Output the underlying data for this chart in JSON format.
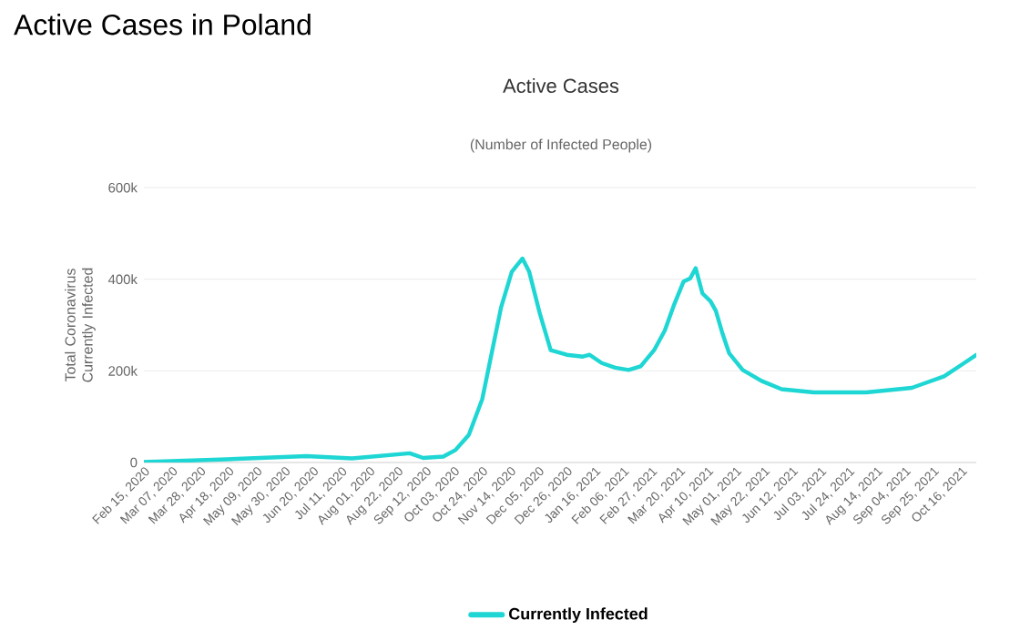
{
  "chart_data": {
    "type": "line",
    "title": "Active Cases",
    "subtitle": "(Number of Infected People)",
    "annotations": [
      "Active Cases in Poland"
    ],
    "ylabel": "Total Coronavirus Currently Infected",
    "x": [
      "2020-02-15",
      "2020-04-17",
      "2020-06-15",
      "2020-07-19",
      "2020-08-31",
      "2020-09-10",
      "2020-09-25",
      "2020-10-04",
      "2020-10-14",
      "2020-10-24",
      "2020-10-31",
      "2020-11-07",
      "2020-11-15",
      "2020-11-19",
      "2020-11-23",
      "2020-11-28",
      "2020-12-06",
      "2020-12-14",
      "2020-12-26",
      "2021-01-07",
      "2021-01-12",
      "2021-01-21",
      "2021-01-31",
      "2021-02-10",
      "2021-02-19",
      "2021-03-01",
      "2021-03-09",
      "2021-03-16",
      "2021-03-23",
      "2021-03-28",
      "2021-04-01",
      "2021-04-06",
      "2021-04-12",
      "2021-04-16",
      "2021-04-21",
      "2021-04-26",
      "2021-05-06",
      "2021-05-20",
      "2021-06-04",
      "2021-06-28",
      "2021-08-06",
      "2021-09-09",
      "2021-10-03",
      "2021-10-18",
      "2021-10-27"
    ],
    "series": [
      {
        "name": "Currently Infected",
        "color": "#1ed6d3",
        "values": [
          1000,
          7000,
          14000,
          9000,
          20000,
          10000,
          13000,
          27000,
          60000,
          138000,
          238000,
          338000,
          416000,
          431000,
          445000,
          416000,
          324000,
          245000,
          235000,
          231000,
          235000,
          217000,
          207000,
          202000,
          210000,
          245000,
          288000,
          345000,
          395000,
          402000,
          424000,
          369000,
          352000,
          331000,
          281000,
          238000,
          202000,
          178000,
          160000,
          153000,
          153000,
          163000,
          188000,
          217000,
          235000
        ]
      }
    ],
    "xlim": [
      "2020-02-15",
      "2021-10-27"
    ],
    "xticks": [
      {
        "value": "2020-02-15",
        "label": "Feb 15, 2020"
      },
      {
        "value": "2020-03-07",
        "label": "Mar 07, 2020"
      },
      {
        "value": "2020-03-28",
        "label": "Mar 28, 2020"
      },
      {
        "value": "2020-04-18",
        "label": "Apr 18, 2020"
      },
      {
        "value": "2020-05-09",
        "label": "May 09, 2020"
      },
      {
        "value": "2020-05-30",
        "label": "May 30, 2020"
      },
      {
        "value": "2020-06-20",
        "label": "Jun 20, 2020"
      },
      {
        "value": "2020-07-11",
        "label": "Jul 11, 2020"
      },
      {
        "value": "2020-08-01",
        "label": "Aug 01, 2020"
      },
      {
        "value": "2020-08-22",
        "label": "Aug 22, 2020"
      },
      {
        "value": "2020-09-12",
        "label": "Sep 12, 2020"
      },
      {
        "value": "2020-10-03",
        "label": "Oct 03, 2020"
      },
      {
        "value": "2020-10-24",
        "label": "Oct 24, 2020"
      },
      {
        "value": "2020-11-14",
        "label": "Nov 14, 2020"
      },
      {
        "value": "2020-12-05",
        "label": "Dec 05, 2020"
      },
      {
        "value": "2020-12-26",
        "label": "Dec 26, 2020"
      },
      {
        "value": "2021-01-16",
        "label": "Jan 16, 2021"
      },
      {
        "value": "2021-02-06",
        "label": "Feb 06, 2021"
      },
      {
        "value": "2021-02-27",
        "label": "Feb 27, 2021"
      },
      {
        "value": "2021-03-20",
        "label": "Mar 20, 2021"
      },
      {
        "value": "2021-04-10",
        "label": "Apr 10, 2021"
      },
      {
        "value": "2021-05-01",
        "label": "May 01, 2021"
      },
      {
        "value": "2021-05-22",
        "label": "May 22, 2021"
      },
      {
        "value": "2021-06-12",
        "label": "Jun 12, 2021"
      },
      {
        "value": "2021-07-03",
        "label": "Jul 03, 2021"
      },
      {
        "value": "2021-07-24",
        "label": "Jul 24, 2021"
      },
      {
        "value": "2021-08-14",
        "label": "Aug 14, 2021"
      },
      {
        "value": "2021-09-04",
        "label": "Sep 04, 2021"
      },
      {
        "value": "2021-09-25",
        "label": "Sep 25, 2021"
      },
      {
        "value": "2021-10-16",
        "label": "Oct 16, 2021"
      }
    ],
    "ylim": [
      0,
      600000
    ],
    "yticks": [
      0,
      {
        "value": 200000,
        "label": "200k"
      },
      {
        "value": 400000,
        "label": "400k"
      },
      {
        "value": 600000,
        "label": "600k"
      }
    ],
    "grid": "y",
    "legend": "bottom",
    "marker": "none",
    "line_style": "solid"
  }
}
